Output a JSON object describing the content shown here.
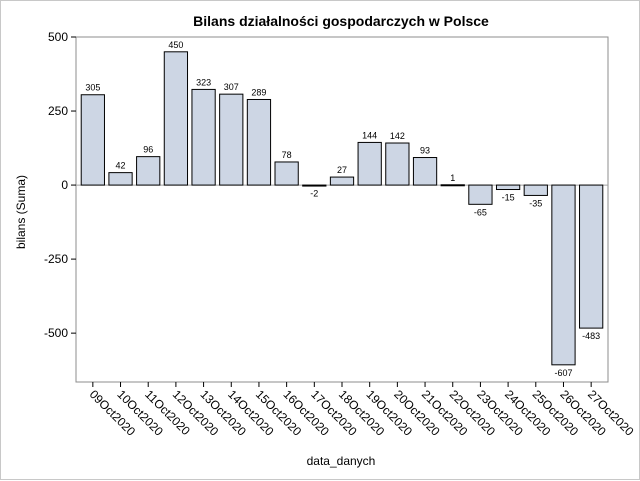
{
  "chart_data": {
    "type": "bar",
    "title": "Bilans działalności gospodarczych w Polsce",
    "xlabel": "data_danych",
    "ylabel": "bilans (Suma)",
    "categories": [
      "09Oct2020",
      "10Oct2020",
      "11Oct2020",
      "12Oct2020",
      "13Oct2020",
      "14Oct2020",
      "15Oct2020",
      "16Oct2020",
      "17Oct2020",
      "18Oct2020",
      "19Oct2020",
      "20Oct2020",
      "21Oct2020",
      "22Oct2020",
      "23Oct2020",
      "24Oct2020",
      "25Oct2020",
      "26Oct2020",
      "27Oct2020"
    ],
    "values": [
      305,
      42,
      96,
      450,
      323,
      307,
      289,
      78,
      -2,
      27,
      144,
      142,
      93,
      1,
      -65,
      -15,
      -35,
      -607,
      -483
    ],
    "ylim": [
      -665,
      500
    ],
    "yticks": [
      500,
      250,
      0,
      -250,
      -500
    ],
    "ytick_labels": [
      "500",
      "250",
      "0",
      "-250",
      "-500"
    ],
    "bar_color": "#cdd6e4",
    "grid": false,
    "legend": "none"
  }
}
